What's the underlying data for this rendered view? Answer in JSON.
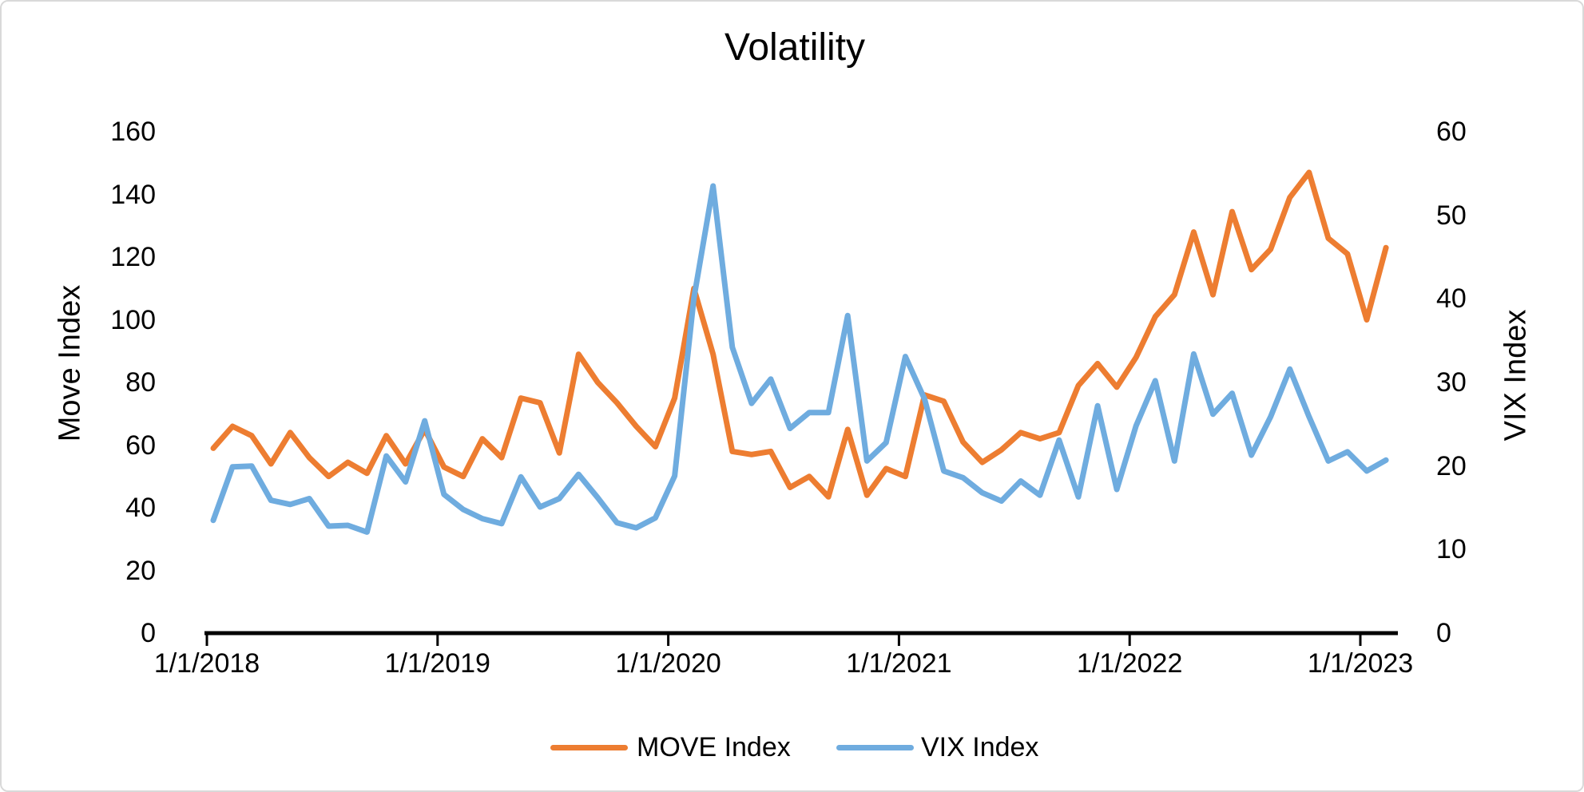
{
  "chart_data": {
    "type": "line",
    "title": "Volatility",
    "grid": false,
    "legend_position": "bottom",
    "x_tick_labels": [
      "1/1/2018",
      "1/1/2019",
      "1/1/2020",
      "1/1/2021",
      "1/1/2022",
      "1/1/2023"
    ],
    "x": [
      "1/2018",
      "2/2018",
      "3/2018",
      "4/2018",
      "5/2018",
      "6/2018",
      "7/2018",
      "8/2018",
      "9/2018",
      "10/2018",
      "11/2018",
      "12/2018",
      "1/2019",
      "2/2019",
      "3/2019",
      "4/2019",
      "5/2019",
      "6/2019",
      "7/2019",
      "8/2019",
      "9/2019",
      "10/2019",
      "11/2019",
      "12/2019",
      "1/2020",
      "2/2020",
      "3/2020",
      "4/2020",
      "5/2020",
      "6/2020",
      "7/2020",
      "8/2020",
      "9/2020",
      "10/2020",
      "11/2020",
      "12/2020",
      "1/2021",
      "2/2021",
      "3/2021",
      "4/2021",
      "5/2021",
      "6/2021",
      "7/2021",
      "8/2021",
      "9/2021",
      "10/2021",
      "11/2021",
      "12/2021",
      "1/2022",
      "2/2022",
      "3/2022",
      "4/2022",
      "5/2022",
      "6/2022",
      "7/2022",
      "8/2022",
      "9/2022",
      "10/2022",
      "11/2022",
      "12/2022",
      "1/2023",
      "2/2023"
    ],
    "series": [
      {
        "name": "MOVE Index",
        "axis": "left",
        "color": "#ED7D31",
        "values": [
          59,
          66,
          63,
          54,
          64,
          56,
          50,
          54.5,
          51,
          63,
          54,
          65,
          53,
          50,
          62,
          56,
          75,
          73.5,
          57.5,
          89,
          80,
          73.5,
          66,
          59.5,
          75,
          110,
          89,
          58,
          57,
          58,
          46.5,
          50,
          43.5,
          65,
          44,
          52.5,
          50,
          76,
          74,
          61,
          54.5,
          58.5,
          64,
          62,
          64,
          79,
          86,
          78.5,
          88,
          101,
          108,
          128,
          108,
          134.5,
          116,
          122.5,
          139,
          147,
          126,
          121,
          100,
          123
        ]
      },
      {
        "name": "VIX Index",
        "axis": "right",
        "color": "#6FACDF",
        "values": [
          13.5,
          19.9,
          20.0,
          15.9,
          15.4,
          16.1,
          12.8,
          12.9,
          12.1,
          21.2,
          18.1,
          25.4,
          16.6,
          14.8,
          13.7,
          13.1,
          18.7,
          15.1,
          16.1,
          19.0,
          16.2,
          13.2,
          12.6,
          13.8,
          18.8,
          40.1,
          53.5,
          34.2,
          27.5,
          30.4,
          24.5,
          26.4,
          26.4,
          38.0,
          20.6,
          22.8,
          33.1,
          28.0,
          19.4,
          18.6,
          16.8,
          15.8,
          18.2,
          16.5,
          23.1,
          16.3,
          27.2,
          17.2,
          24.8,
          30.2,
          20.6,
          33.4,
          26.2,
          28.7,
          21.3,
          25.9,
          31.6,
          25.9,
          20.6,
          21.7,
          19.4,
          20.7
        ]
      }
    ],
    "left_axis": {
      "title": "Move Index",
      "min": 0,
      "max": 160,
      "step": 20,
      "tick_labels": [
        "0",
        "20",
        "40",
        "60",
        "80",
        "100",
        "120",
        "140",
        "160"
      ]
    },
    "right_axis": {
      "title": "VIX Index",
      "min": 0,
      "max": 60,
      "step": 10,
      "tick_labels": [
        "0",
        "10",
        "20",
        "30",
        "40",
        "50",
        "60"
      ]
    }
  }
}
